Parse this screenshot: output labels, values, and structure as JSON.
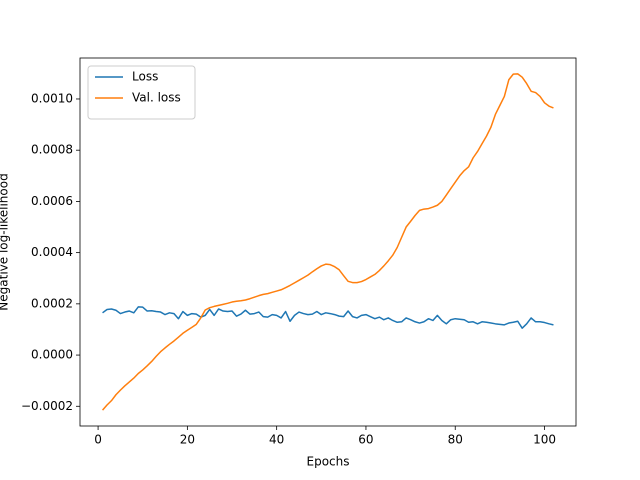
{
  "chart_data": {
    "type": "line",
    "xlabel": "Epochs",
    "ylabel": "Negative log-likelihood",
    "x": [
      1,
      2,
      3,
      4,
      5,
      6,
      7,
      8,
      9,
      10,
      11,
      12,
      13,
      14,
      15,
      16,
      17,
      18,
      19,
      20,
      21,
      22,
      23,
      24,
      25,
      26,
      27,
      28,
      29,
      30,
      31,
      32,
      33,
      34,
      35,
      36,
      37,
      38,
      39,
      40,
      41,
      42,
      43,
      44,
      45,
      46,
      47,
      48,
      49,
      50,
      51,
      52,
      53,
      54,
      55,
      56,
      57,
      58,
      59,
      60,
      61,
      62,
      63,
      64,
      65,
      66,
      67,
      68,
      69,
      70,
      71,
      72,
      73,
      74,
      75,
      76,
      77,
      78,
      79,
      80,
      81,
      82,
      83,
      84,
      85,
      86,
      87,
      88,
      89,
      90,
      91,
      92,
      93,
      94,
      95,
      96,
      97,
      98,
      99,
      100,
      101,
      102
    ],
    "series": [
      {
        "name": "Loss",
        "color": "#1f77b4",
        "values": [
          0.000165,
          0.000178,
          0.00018,
          0.000175,
          0.000162,
          0.000168,
          0.000172,
          0.000165,
          0.000188,
          0.000187,
          0.000172,
          0.000173,
          0.00017,
          0.000168,
          0.000158,
          0.000165,
          0.000162,
          0.000142,
          0.00017,
          0.000155,
          0.000162,
          0.00016,
          0.000148,
          0.000155,
          0.000178,
          0.000155,
          0.00018,
          0.000172,
          0.00017,
          0.000172,
          0.000152,
          0.00016,
          0.000175,
          0.00016,
          0.000162,
          0.000168,
          0.00015,
          0.000148,
          0.000158,
          0.000155,
          0.000145,
          0.00017,
          0.000132,
          0.000155,
          0.000168,
          0.000162,
          0.000158,
          0.00016,
          0.00017,
          0.000158,
          0.000165,
          0.000162,
          0.000158,
          0.000152,
          0.00015,
          0.000172,
          0.00015,
          0.000145,
          0.000155,
          0.000158,
          0.00015,
          0.000142,
          0.000148,
          0.000138,
          0.000145,
          0.000135,
          0.000128,
          0.00013,
          0.000145,
          0.000138,
          0.00013,
          0.000125,
          0.00013,
          0.000142,
          0.000135,
          0.000155,
          0.000135,
          0.000122,
          0.000138,
          0.000142,
          0.00014,
          0.000138,
          0.000128,
          0.00013,
          0.000122,
          0.00013,
          0.000128,
          0.000125,
          0.000122,
          0.00012,
          0.000118,
          0.000125,
          0.000128,
          0.000132,
          0.000105,
          0.000122,
          0.000145,
          0.00013,
          0.00013,
          0.000127,
          0.000122,
          0.000118
        ]
      },
      {
        "name": "Val. loss",
        "color": "#ff7f0e",
        "values": [
          -0.000215,
          -0.000195,
          -0.000178,
          -0.000155,
          -0.000137,
          -0.00012,
          -0.000105,
          -9e-05,
          -7.2e-05,
          -5.8e-05,
          -4.2e-05,
          -2.5e-05,
          -5e-06,
          1.3e-05,
          2.8e-05,
          4.2e-05,
          5.5e-05,
          7e-05,
          8.5e-05,
          9.7e-05,
          0.000108,
          0.00012,
          0.000145,
          0.000176,
          0.000185,
          0.00019,
          0.000194,
          0.000198,
          0.000202,
          0.000207,
          0.00021,
          0.000212,
          0.000215,
          0.00022,
          0.000226,
          0.000232,
          0.000237,
          0.00024,
          0.000245,
          0.00025,
          0.000255,
          0.000263,
          0.000272,
          0.000282,
          0.000292,
          0.000302,
          0.000312,
          0.000325,
          0.000337,
          0.000348,
          0.000355,
          0.000353,
          0.000345,
          0.000333,
          0.00031,
          0.000288,
          0.000283,
          0.000283,
          0.000287,
          0.000295,
          0.000305,
          0.000315,
          0.00033,
          0.000348,
          0.000368,
          0.00039,
          0.00042,
          0.00046,
          0.0005,
          0.000522,
          0.000545,
          0.000565,
          0.00057,
          0.000572,
          0.000578,
          0.000585,
          0.0006,
          0.000625,
          0.00065,
          0.000675,
          0.0007,
          0.00072,
          0.000735,
          0.00077,
          0.000795,
          0.000825,
          0.000855,
          0.00089,
          0.00094,
          0.000975,
          0.00101,
          0.001075,
          0.001097,
          0.001098,
          0.001085,
          0.00106,
          0.00103,
          0.001025,
          0.00101,
          0.000985,
          0.000972,
          0.000965
        ]
      }
    ],
    "xlim": [
      -4.05,
      107.05
    ],
    "ylim": [
      -0.000277,
      0.00116
    ],
    "xticks": [
      0,
      20,
      40,
      60,
      80,
      100
    ],
    "yticks": [
      {
        "value": -0.0002,
        "label": "−0.0002"
      },
      {
        "value": 0,
        "label": "0.0000"
      },
      {
        "value": 0.0002,
        "label": "0.0002"
      },
      {
        "value": 0.0004,
        "label": "0.0004"
      },
      {
        "value": 0.0006,
        "label": "0.0006"
      },
      {
        "value": 0.0008,
        "label": "0.0008"
      },
      {
        "value": 0.001,
        "label": "0.0010"
      }
    ],
    "legend": "upper left",
    "grid": false
  }
}
